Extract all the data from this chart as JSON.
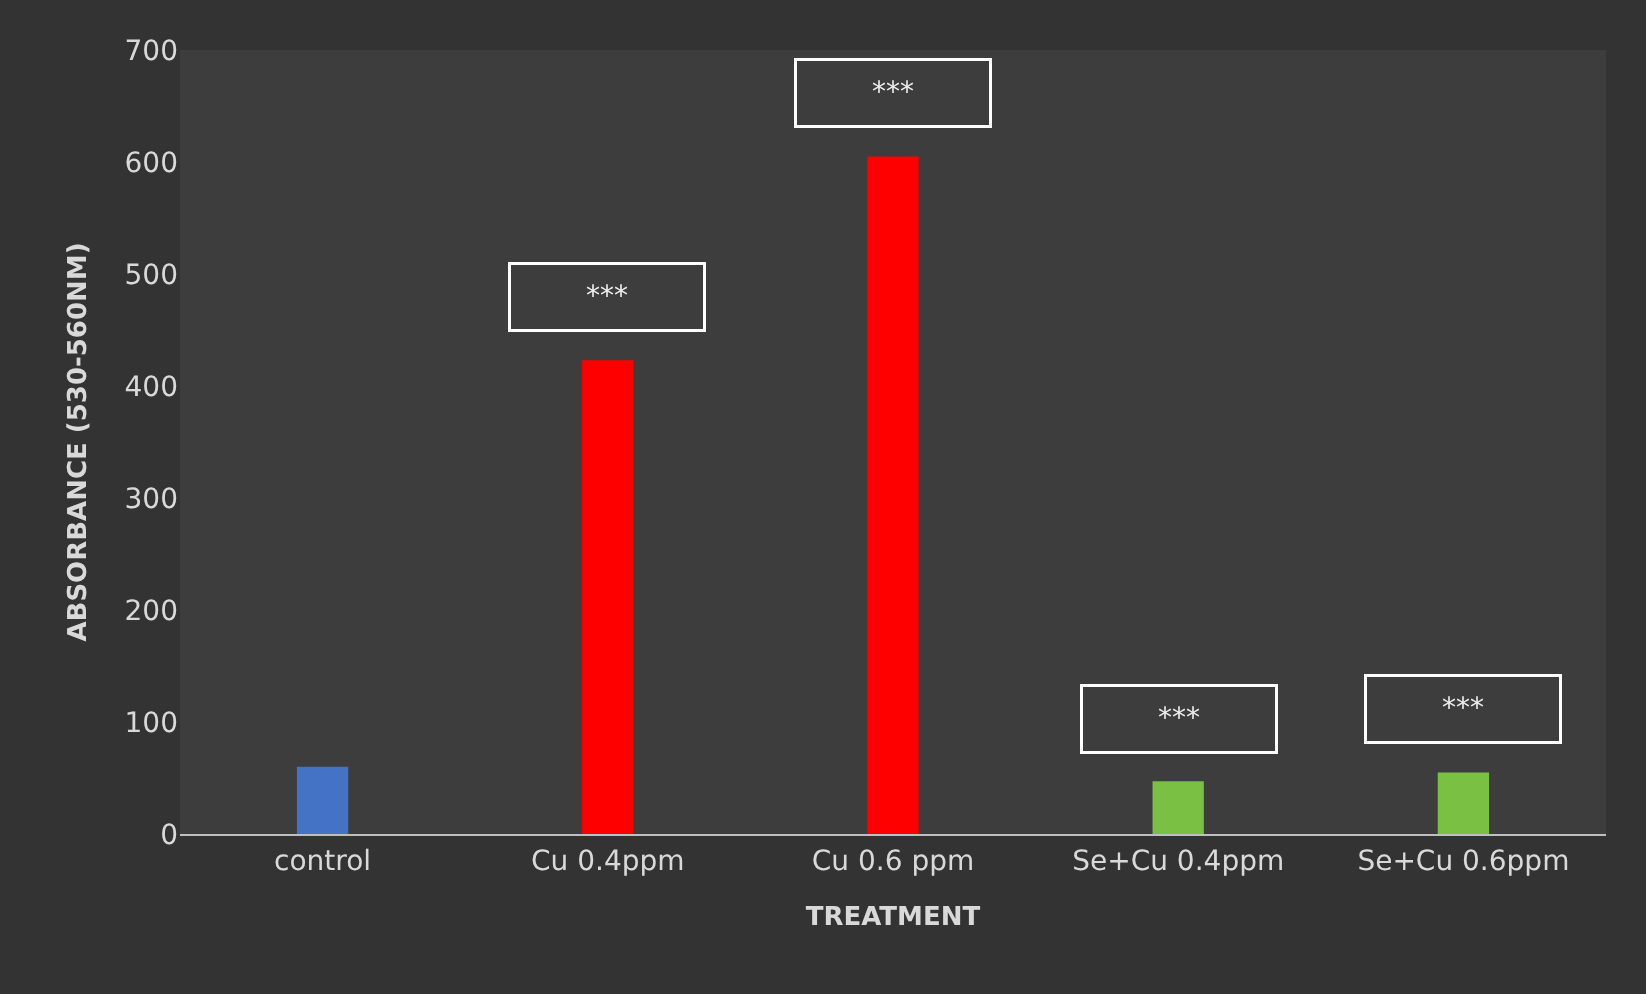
{
  "chart_data": {
    "type": "bar",
    "xlabel": "TREATMENT",
    "ylabel": "ABSORBANCE (530-560NM)",
    "categories": [
      "control",
      "Cu 0.4ppm",
      "Cu 0.6 ppm",
      "Se+Cu 0.4ppm",
      "Se+Cu 0.6ppm"
    ],
    "values": [
      60,
      423,
      605,
      47,
      55
    ],
    "colors": [
      "#4472c4",
      "#ff0000",
      "#ff0000",
      "#7ac143",
      "#7ac143"
    ],
    "ylim": [
      0,
      700
    ],
    "yticks": [
      0,
      100,
      200,
      300,
      400,
      500,
      600,
      700
    ],
    "grid": false,
    "legend": false,
    "annotations": [
      {
        "text": "***",
        "x": "Cu 0.4ppm",
        "y": 423
      },
      {
        "text": "***",
        "x": "Cu 0.6 ppm",
        "y": 605
      },
      {
        "text": "***",
        "x": "Se+Cu 0.4ppm",
        "y": 47
      },
      {
        "text": "***",
        "x": "Se+Cu 0.6ppm",
        "y": 55
      }
    ]
  }
}
